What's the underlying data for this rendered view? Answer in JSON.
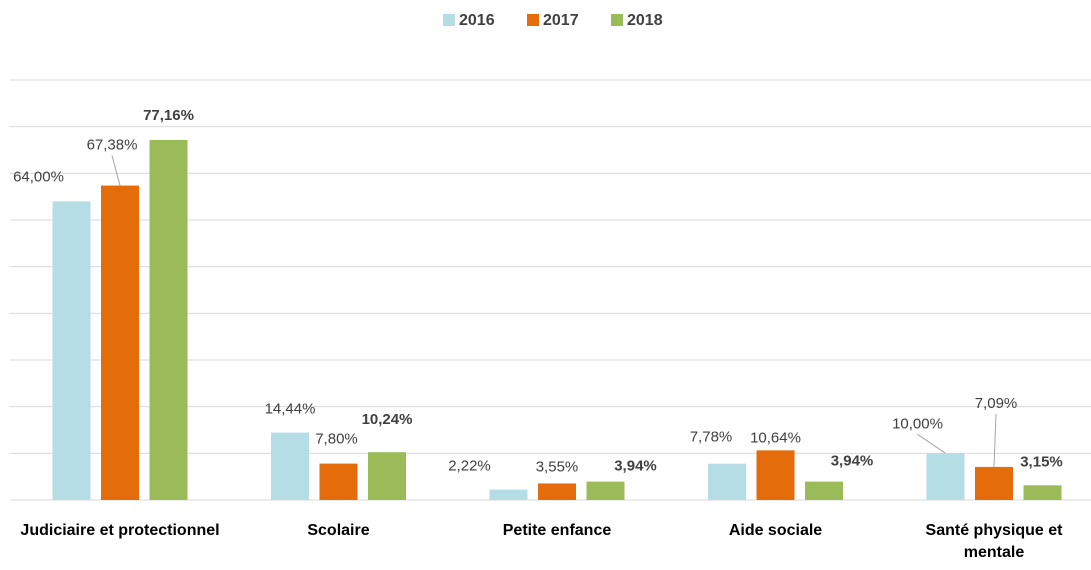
{
  "chart_data": {
    "type": "bar",
    "categories": [
      "Judiciaire et protectionnel",
      "Scolaire",
      "Petite enfance",
      "Aide sociale",
      "Santé physique et mentale"
    ],
    "series": [
      {
        "name": "2016",
        "color": "#b4dde6",
        "label_bold": false,
        "values": [
          64.0,
          14.44,
          2.22,
          7.78,
          10.0
        ],
        "value_labels": [
          "64,00%",
          "14,44%",
          "2,22%",
          "7,78%",
          "10,00%"
        ]
      },
      {
        "name": "2017",
        "color": "#e46c0a",
        "label_bold": false,
        "values": [
          67.38,
          7.8,
          3.55,
          10.64,
          7.09
        ],
        "value_labels": [
          "67,38%",
          "7,80%",
          "3,55%",
          "10,64%",
          "7,09%"
        ]
      },
      {
        "name": "2018",
        "color": "#9bbb59",
        "label_bold": true,
        "values": [
          77.16,
          10.24,
          3.94,
          3.94,
          3.15
        ],
        "value_labels": [
          "77,16%",
          "10,24%",
          "3,94%",
          "3,94%",
          "3,15%"
        ]
      }
    ],
    "ylim": [
      0,
      90
    ],
    "yticks": [
      0,
      10,
      20,
      30,
      40,
      50,
      60,
      70,
      80,
      90
    ],
    "grid": true,
    "legend": "top"
  }
}
